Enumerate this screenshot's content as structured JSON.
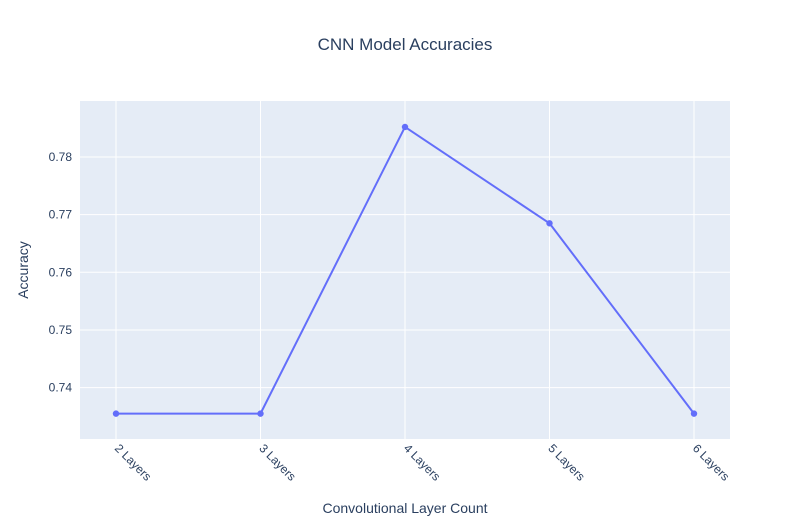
{
  "chart_data": {
    "type": "line",
    "title": "CNN Model Accuracies",
    "xlabel": "Convolutional Layer Count",
    "ylabel": "Accuracy",
    "categories": [
      "2 Layers",
      "3 Layers",
      "4 Layers",
      "5 Layers",
      "6 Layers"
    ],
    "series": [
      {
        "values": [
          0.7355,
          0.7355,
          0.7852,
          0.7685,
          0.7355
        ]
      }
    ],
    "ylim": [
      0.7311,
      0.7897
    ],
    "yticks": [
      0.74,
      0.75,
      0.76,
      0.77,
      0.78
    ],
    "ytick_labels": [
      "0.74",
      "0.75",
      "0.76",
      "0.77",
      "0.78"
    ],
    "grid": true,
    "legend": "none",
    "colors": {
      "plot_background": "#e5ecf6",
      "grid": "#ffffff",
      "line": "#636efa",
      "text": "#2a3f5f"
    }
  }
}
